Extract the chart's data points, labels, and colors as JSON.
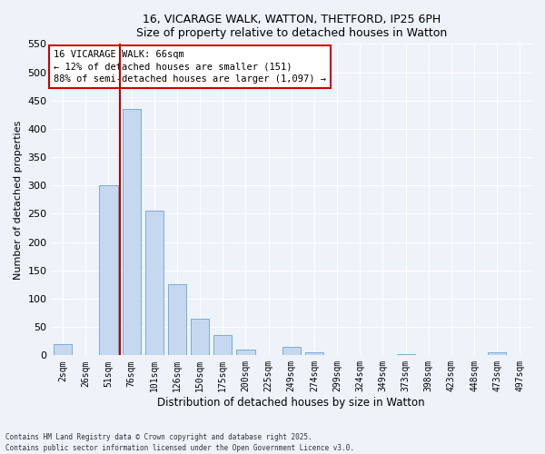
{
  "title_line1": "16, VICARAGE WALK, WATTON, THETFORD, IP25 6PH",
  "title_line2": "Size of property relative to detached houses in Watton",
  "xlabel": "Distribution of detached houses by size in Watton",
  "ylabel": "Number of detached properties",
  "bar_color": "#c5d8f0",
  "bar_edge_color": "#7aadd4",
  "background_color": "#eef2f9",
  "grid_color": "#ffffff",
  "categories": [
    "2sqm",
    "26sqm",
    "51sqm",
    "76sqm",
    "101sqm",
    "126sqm",
    "150sqm",
    "175sqm",
    "200sqm",
    "225sqm",
    "249sqm",
    "274sqm",
    "299sqm",
    "324sqm",
    "349sqm",
    "373sqm",
    "398sqm",
    "423sqm",
    "448sqm",
    "473sqm",
    "497sqm"
  ],
  "values": [
    20,
    0,
    300,
    435,
    255,
    125,
    65,
    36,
    10,
    0,
    15,
    5,
    0,
    0,
    0,
    2,
    0,
    0,
    0,
    5,
    0
  ],
  "ylim": [
    0,
    550
  ],
  "yticks": [
    0,
    50,
    100,
    150,
    200,
    250,
    300,
    350,
    400,
    450,
    500,
    550
  ],
  "vline_color": "#bb0000",
  "vline_x_index": 2.5,
  "annotation_text": "16 VICARAGE WALK: 66sqm\n← 12% of detached houses are smaller (151)\n88% of semi-detached houses are larger (1,097) →",
  "annotation_box_color": "#ffffff",
  "annotation_box_edge": "#cc0000",
  "footer_line1": "Contains HM Land Registry data © Crown copyright and database right 2025.",
  "footer_line2": "Contains public sector information licensed under the Open Government Licence v3.0."
}
